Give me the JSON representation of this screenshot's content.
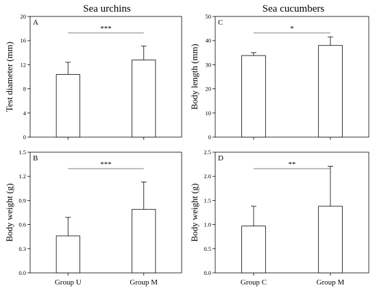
{
  "column_titles": [
    "Sea urchins",
    "Sea cucumbers"
  ],
  "colors": {
    "bar_fill": "#ffffff",
    "stroke": "#000000",
    "sig_line": "#555555"
  },
  "chart_data": [
    {
      "type": "bar",
      "panel_label": "A",
      "categories": [
        "Group U",
        "Group M"
      ],
      "values": [
        10.4,
        12.8
      ],
      "error_bars": [
        2.0,
        2.3
      ],
      "ylabel": "Test diameter (mm)",
      "ylim": [
        0,
        20
      ],
      "yticks": [
        0,
        4,
        8,
        12,
        16,
        20
      ],
      "yticklabels": [
        "0",
        "4",
        "8",
        "12",
        "16",
        "20"
      ],
      "significance": "***",
      "show_xticklabels": false
    },
    {
      "type": "bar",
      "panel_label": "B",
      "categories": [
        "Group U",
        "Group M"
      ],
      "values": [
        0.46,
        0.79
      ],
      "error_bars": [
        0.23,
        0.34
      ],
      "ylabel": "Body weight (g)",
      "ylim": [
        0,
        1.5
      ],
      "yticks": [
        0,
        0.3,
        0.6,
        0.9,
        1.2,
        1.5
      ],
      "yticklabels": [
        "0.0",
        "0.3",
        "0.6",
        "0.9",
        "1.2",
        "1.5"
      ],
      "significance": "***",
      "show_xticklabels": true
    },
    {
      "type": "bar",
      "panel_label": "C",
      "categories": [
        "Group C",
        "Group M"
      ],
      "values": [
        33.8,
        38.0
      ],
      "error_bars": [
        1.2,
        3.5
      ],
      "ylabel": "Body length (mm)",
      "ylim": [
        0,
        50
      ],
      "yticks": [
        0,
        10,
        20,
        30,
        40,
        50
      ],
      "yticklabels": [
        "0",
        "10",
        "20",
        "30",
        "40",
        "50"
      ],
      "significance": "*",
      "show_xticklabels": false
    },
    {
      "type": "bar",
      "panel_label": "D",
      "categories": [
        "Group C",
        "Group M"
      ],
      "values": [
        0.97,
        1.38
      ],
      "error_bars": [
        0.41,
        0.83
      ],
      "ylabel": "Body weight (g)",
      "ylim": [
        0,
        2.5
      ],
      "yticks": [
        0,
        0.5,
        1.0,
        1.5,
        2.0,
        2.5
      ],
      "yticklabels": [
        "0.0",
        "0.5",
        "1.0",
        "1.5",
        "2.0",
        "2.5"
      ],
      "significance": "**",
      "show_xticklabels": true
    }
  ]
}
